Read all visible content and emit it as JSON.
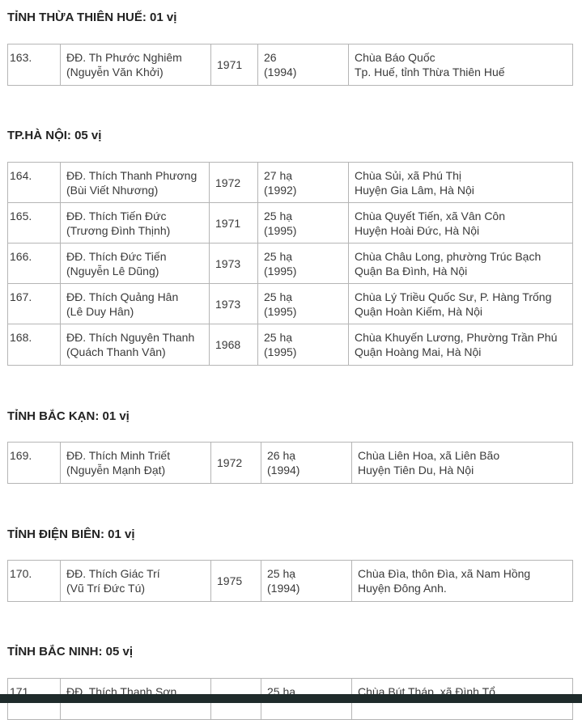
{
  "sections": [
    {
      "title": "TỈNH THỪA THIÊN HUẾ: 01 vị",
      "rows": [
        {
          "no": "163.",
          "name": [
            "ĐĐ. Th Phước Nghiêm",
            "(Nguyễn Văn Khởi)"
          ],
          "year": "1971",
          "ordination": [
            "26",
            "(1994)"
          ],
          "temple": [
            "Chùa Báo Quốc",
            "Tp. Huế, tỉnh Thừa Thiên Huế"
          ]
        }
      ]
    },
    {
      "title": "TP.HÀ NỘI: 05 vị",
      "rows": [
        {
          "no": "164.",
          "name": [
            "ĐĐ. Thích Thanh Phương",
            "(Bùi Viết Nhương)"
          ],
          "year": "1972",
          "ordination": [
            "27 hạ",
            "(1992)"
          ],
          "temple": [
            "Chùa Sủi, xã Phú Thị",
            "Huyện Gia Lâm, Hà Nội"
          ]
        },
        {
          "no": "165.",
          "name": [
            "ĐĐ. Thích Tiến Đức",
            "(Trương Đình Thịnh)"
          ],
          "year": "1971",
          "ordination": [
            "25 hạ",
            "(1995)"
          ],
          "temple": [
            "Chùa Quyết Tiến, xã Vân Côn",
            "Huyện Hoài Đức, Hà Nội"
          ]
        },
        {
          "no": "166.",
          "name": [
            "ĐĐ. Thích Đức Tiến",
            "(Nguyễn Lê Dũng)"
          ],
          "year": "1973",
          "ordination": [
            "25 hạ",
            "(1995)"
          ],
          "temple": [
            "Chùa Châu Long, phường Trúc Bạch",
            "Quận Ba Đình, Hà Nội"
          ]
        },
        {
          "no": "167.",
          "name": [
            "ĐĐ. Thích Quảng Hân",
            "(Lê Duy Hân)"
          ],
          "year": "1973",
          "ordination": [
            "25 hạ",
            "(1995)"
          ],
          "temple": [
            "Chùa Lý Triều Quốc Sư, P. Hàng Trống",
            "Quận Hoàn Kiếm, Hà Nội"
          ]
        },
        {
          "no": "168.",
          "name": [
            "ĐĐ. Thích Nguyên Thanh",
            "(Quách Thanh Vân)"
          ],
          "year": "1968",
          "ordination": [
            "25 hạ",
            "(1995)"
          ],
          "temple": [
            "Chùa Khuyến Lương, Phường Trần Phú",
            "Quận Hoàng Mai, Hà Nội"
          ]
        }
      ]
    },
    {
      "title": "TỈNH BẮC KẠN: 01 vị",
      "rows": [
        {
          "no": "169.",
          "name": [
            "ĐĐ. Thích Minh Triết",
            "(Nguyễn Mạnh Đạt)"
          ],
          "year": "1972",
          "ordination": [
            "26 hạ",
            "(1994)"
          ],
          "temple": [
            "Chùa Liên Hoa, xã Liên Bão",
            "Huyện Tiên Du, Hà Nội"
          ]
        }
      ]
    },
    {
      "title": "TỈNH ĐIỆN BIÊN: 01 vị",
      "rows": [
        {
          "no": "170.",
          "name": [
            "ĐĐ. Thích Giác Trí",
            "(Vũ Trí Đức Tú)"
          ],
          "year": "1975",
          "ordination": [
            "25 hạ",
            "(1994)"
          ],
          "temple": [
            "Chùa Đìa, thôn Đìa, xã Nam Hồng",
            "Huyện Đông Anh."
          ]
        }
      ]
    },
    {
      "title": "TỈNH BẮC NINH: 05 vị",
      "rows": [
        {
          "no": "171.",
          "name": [
            "ĐĐ. Thích Thanh Sơn"
          ],
          "ordination": [
            "25 hạ"
          ],
          "temple": [
            "Chùa Bút Tháp, xã Đình Tổ"
          ]
        }
      ]
    }
  ]
}
